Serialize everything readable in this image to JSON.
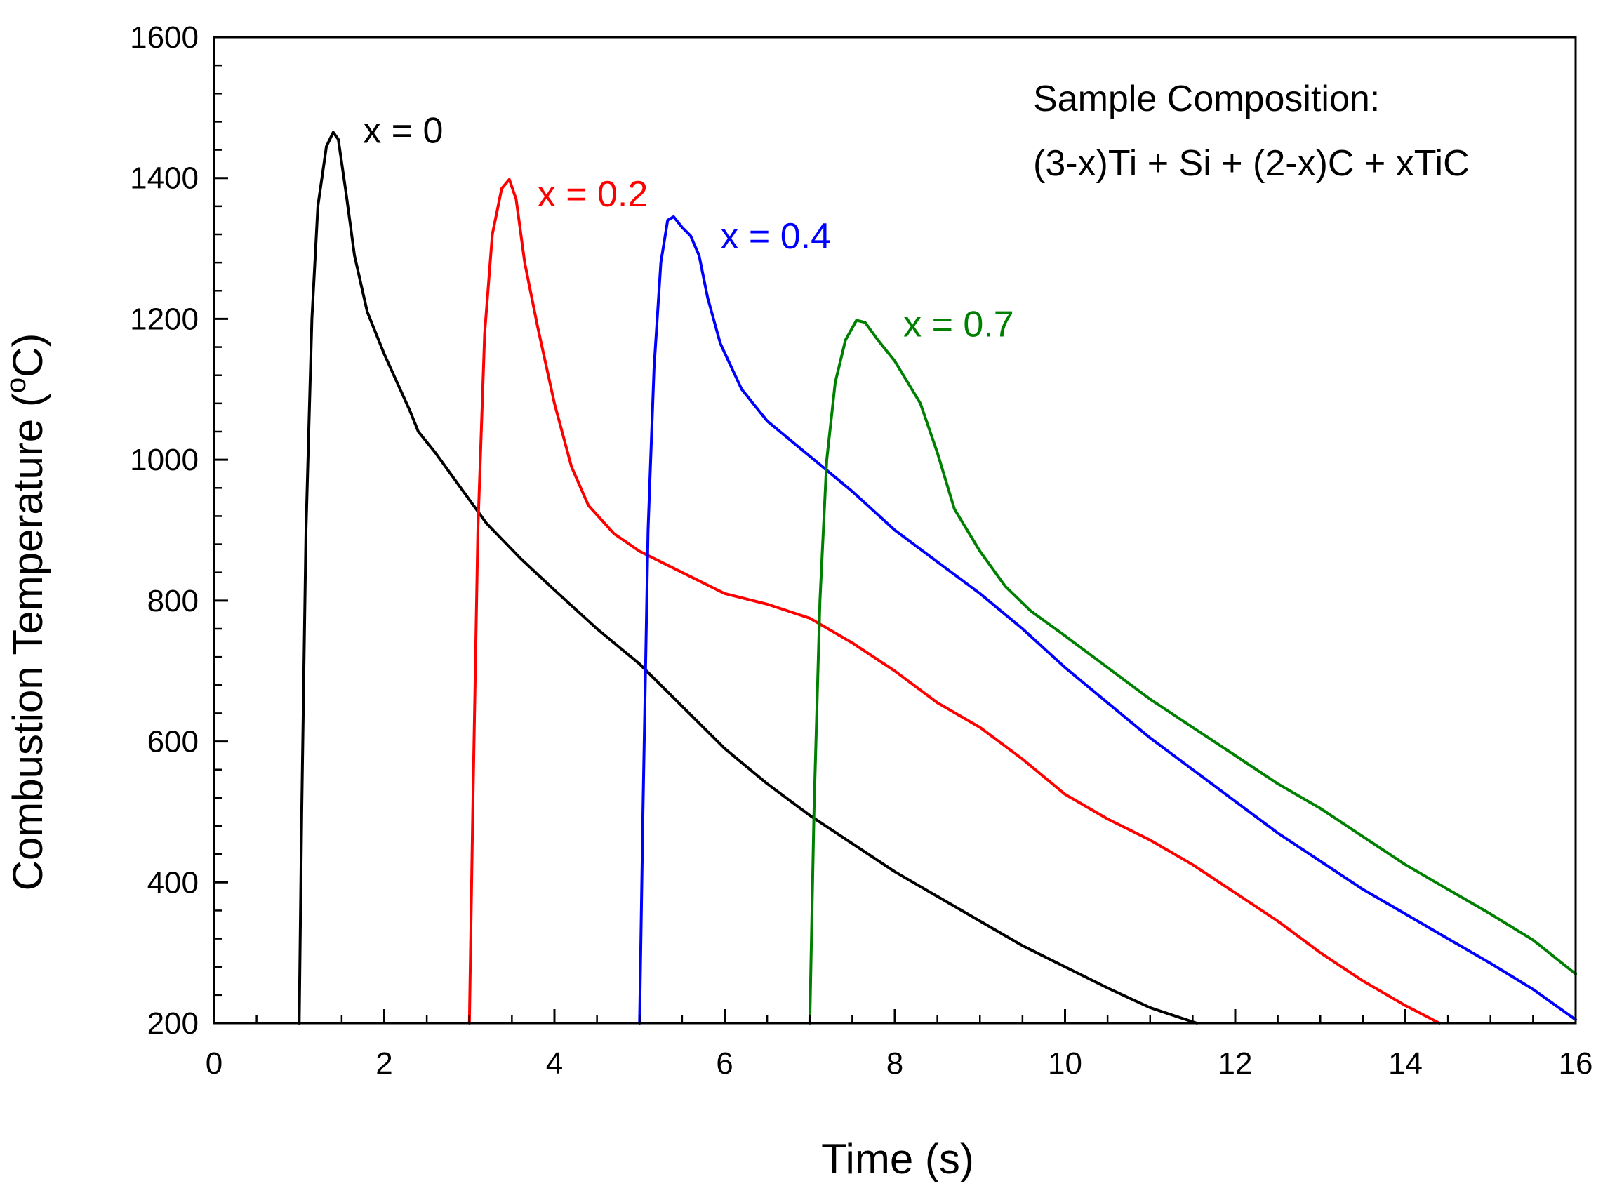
{
  "chart_data": {
    "type": "line",
    "title": "",
    "xlabel": "Time (s)",
    "ylabel_prefix": "Combustion Temperature (",
    "ylabel_sup": "o",
    "ylabel_suffix": "C)",
    "xlim": [
      0,
      16
    ],
    "ylim": [
      200,
      1600
    ],
    "xticks": [
      0,
      2,
      4,
      6,
      8,
      10,
      12,
      14,
      16
    ],
    "yticks": [
      200,
      400,
      600,
      800,
      1000,
      1200,
      1400,
      1600
    ],
    "xtick_labels": [
      "0",
      "2",
      "4",
      "6",
      "8",
      "10",
      "12",
      "14",
      "16"
    ],
    "ytick_labels": [
      "200",
      "400",
      "600",
      "800",
      "1000",
      "1200",
      "1400",
      "1600"
    ],
    "grid": false,
    "annotation": {
      "line1": "Sample Composition:",
      "line2": "(3-x)Ti + Si + (2-x)C + xTiC"
    },
    "series": [
      {
        "name": "x = 0",
        "label": "x = 0",
        "color": "#000000",
        "label_at": [
          1.75,
          1450
        ],
        "points": [
          [
            1.0,
            200
          ],
          [
            1.03,
            500
          ],
          [
            1.08,
            900
          ],
          [
            1.15,
            1200
          ],
          [
            1.22,
            1360
          ],
          [
            1.32,
            1445
          ],
          [
            1.4,
            1465
          ],
          [
            1.46,
            1455
          ],
          [
            1.55,
            1380
          ],
          [
            1.65,
            1290
          ],
          [
            1.8,
            1210
          ],
          [
            2.0,
            1150
          ],
          [
            2.15,
            1110
          ],
          [
            2.3,
            1070
          ],
          [
            2.4,
            1040
          ],
          [
            2.6,
            1010
          ],
          [
            2.9,
            960
          ],
          [
            3.2,
            910
          ],
          [
            3.6,
            860
          ],
          [
            4.0,
            815
          ],
          [
            4.5,
            760
          ],
          [
            5.0,
            710
          ],
          [
            5.5,
            650
          ],
          [
            6.0,
            590
          ],
          [
            6.5,
            540
          ],
          [
            7.0,
            495
          ],
          [
            7.5,
            455
          ],
          [
            8.0,
            415
          ],
          [
            8.5,
            380
          ],
          [
            9.0,
            345
          ],
          [
            9.5,
            310
          ],
          [
            10.0,
            280
          ],
          [
            10.5,
            250
          ],
          [
            11.0,
            222
          ],
          [
            11.3,
            210
          ],
          [
            11.55,
            200
          ]
        ]
      },
      {
        "name": "x = 0.2",
        "label": "x = 0.2",
        "color": "#ff0000",
        "label_at": [
          3.8,
          1360
        ],
        "points": [
          [
            3.0,
            200
          ],
          [
            3.04,
            500
          ],
          [
            3.1,
            900
          ],
          [
            3.18,
            1180
          ],
          [
            3.27,
            1320
          ],
          [
            3.38,
            1385
          ],
          [
            3.47,
            1398
          ],
          [
            3.55,
            1370
          ],
          [
            3.65,
            1280
          ],
          [
            3.8,
            1190
          ],
          [
            4.0,
            1080
          ],
          [
            4.2,
            990
          ],
          [
            4.4,
            935
          ],
          [
            4.7,
            895
          ],
          [
            5.0,
            870
          ],
          [
            5.5,
            840
          ],
          [
            6.0,
            810
          ],
          [
            6.5,
            795
          ],
          [
            7.0,
            775
          ],
          [
            7.5,
            740
          ],
          [
            8.0,
            700
          ],
          [
            8.5,
            655
          ],
          [
            9.0,
            620
          ],
          [
            9.5,
            575
          ],
          [
            10.0,
            525
          ],
          [
            10.5,
            490
          ],
          [
            11.0,
            460
          ],
          [
            11.5,
            425
          ],
          [
            12.0,
            385
          ],
          [
            12.5,
            345
          ],
          [
            13.0,
            300
          ],
          [
            13.5,
            260
          ],
          [
            14.0,
            225
          ],
          [
            14.4,
            200
          ]
        ]
      },
      {
        "name": "x = 0.4",
        "label": "x = 0.4",
        "color": "#0000ff",
        "label_at": [
          5.95,
          1300
        ],
        "points": [
          [
            5.0,
            200
          ],
          [
            5.04,
            500
          ],
          [
            5.1,
            900
          ],
          [
            5.17,
            1130
          ],
          [
            5.25,
            1280
          ],
          [
            5.33,
            1340
          ],
          [
            5.4,
            1345
          ],
          [
            5.5,
            1330
          ],
          [
            5.6,
            1318
          ],
          [
            5.7,
            1290
          ],
          [
            5.8,
            1230
          ],
          [
            5.95,
            1165
          ],
          [
            6.2,
            1100
          ],
          [
            6.5,
            1055
          ],
          [
            7.0,
            1005
          ],
          [
            7.5,
            955
          ],
          [
            8.0,
            900
          ],
          [
            8.5,
            855
          ],
          [
            9.0,
            810
          ],
          [
            9.5,
            760
          ],
          [
            10.0,
            705
          ],
          [
            10.5,
            655
          ],
          [
            11.0,
            605
          ],
          [
            11.5,
            560
          ],
          [
            12.0,
            515
          ],
          [
            12.5,
            470
          ],
          [
            13.0,
            430
          ],
          [
            13.5,
            390
          ],
          [
            14.0,
            355
          ],
          [
            14.5,
            320
          ],
          [
            15.0,
            285
          ],
          [
            15.5,
            248
          ],
          [
            16.0,
            205
          ]
        ]
      },
      {
        "name": "x = 0.7",
        "label": "x = 0.7",
        "color": "#008000",
        "label_at": [
          8.1,
          1175
        ],
        "points": [
          [
            7.0,
            200
          ],
          [
            7.05,
            500
          ],
          [
            7.12,
            800
          ],
          [
            7.2,
            1000
          ],
          [
            7.3,
            1110
          ],
          [
            7.42,
            1170
          ],
          [
            7.55,
            1198
          ],
          [
            7.65,
            1195
          ],
          [
            7.8,
            1170
          ],
          [
            8.0,
            1140
          ],
          [
            8.3,
            1080
          ],
          [
            8.5,
            1010
          ],
          [
            8.7,
            930
          ],
          [
            9.0,
            870
          ],
          [
            9.3,
            820
          ],
          [
            9.6,
            785
          ],
          [
            10.0,
            750
          ],
          [
            10.5,
            705
          ],
          [
            11.0,
            660
          ],
          [
            11.5,
            620
          ],
          [
            12.0,
            580
          ],
          [
            12.5,
            540
          ],
          [
            13.0,
            505
          ],
          [
            13.5,
            465
          ],
          [
            14.0,
            425
          ],
          [
            14.5,
            390
          ],
          [
            15.0,
            355
          ],
          [
            15.5,
            318
          ],
          [
            16.0,
            270
          ]
        ]
      }
    ]
  }
}
